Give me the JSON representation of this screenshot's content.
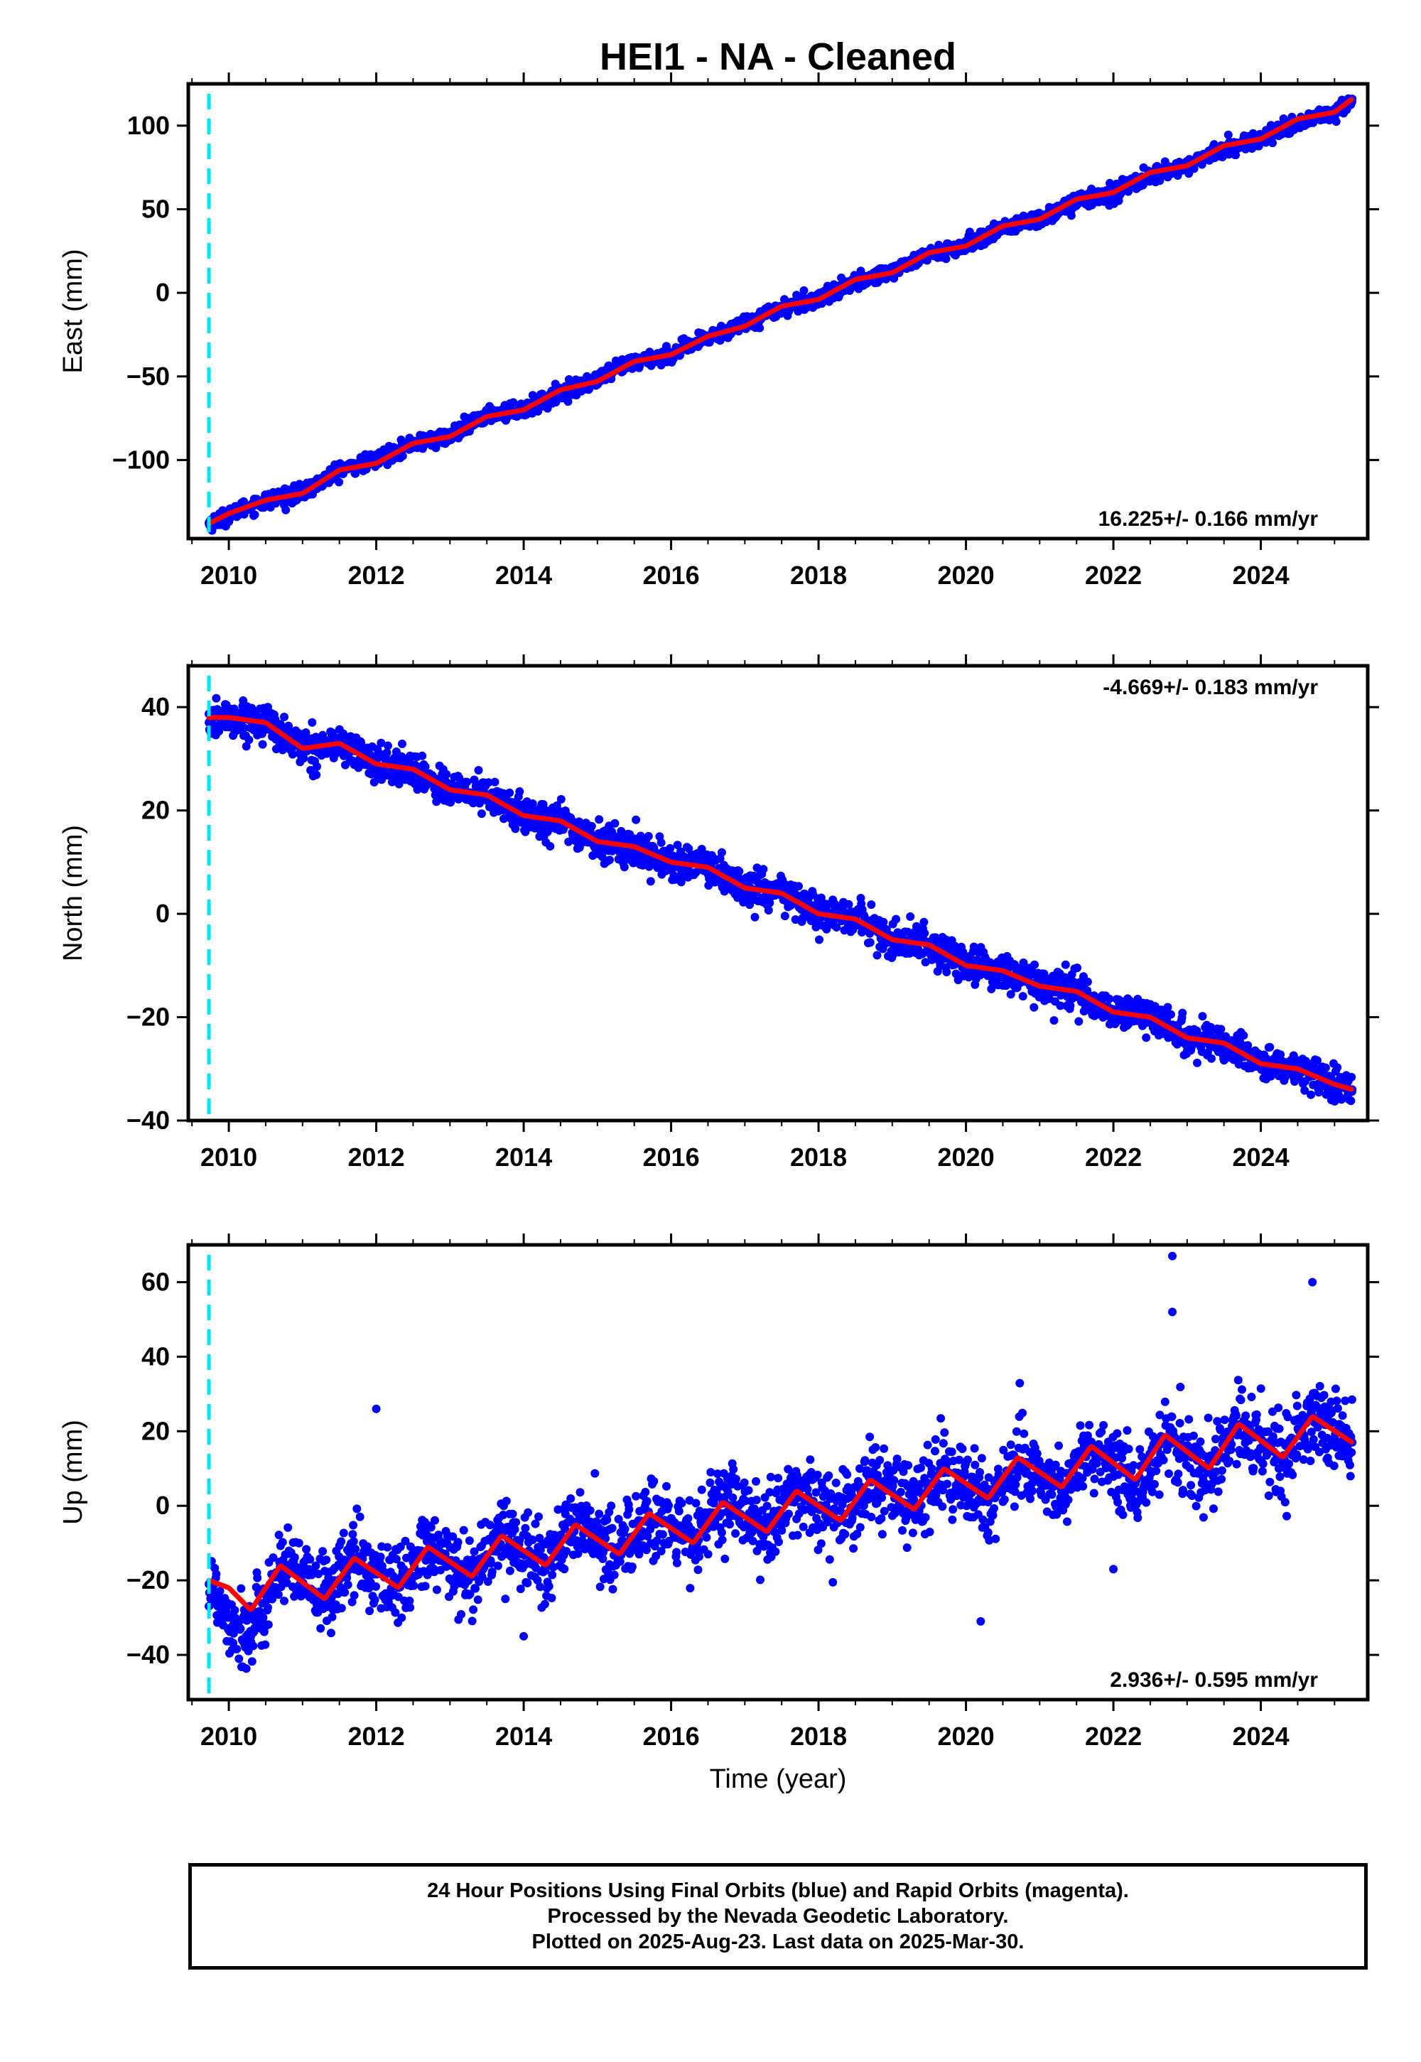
{
  "title": "HEI1  - NA - Cleaned",
  "xlabel": "Time (year)",
  "colors": {
    "data": "#0000ff",
    "model": "#ff0000",
    "event": "#00e5ee",
    "frame": "#000000"
  },
  "chart_data": [
    {
      "type": "scatter",
      "component": "east",
      "ylabel": "East (mm)",
      "xlim": [
        2009.45,
        2025.45
      ],
      "ylim": [
        -147,
        125
      ],
      "xticks": [
        2010,
        2012,
        2014,
        2016,
        2018,
        2020,
        2022,
        2024
      ],
      "yticks": [
        -100,
        -50,
        0,
        50,
        100
      ],
      "rate_text": "16.225+/- 0.166 mm/yr",
      "rate_position": "bottom-right",
      "event_line_x": 2009.73,
      "data_range": [
        2009.73,
        2025.24
      ],
      "series": [
        {
          "name": "",
          "kind": "points",
          "color": "#0000ff",
          "points": [
            [
              2009.73,
              -138
            ],
            [
              2009.9,
              -135
            ],
            [
              2010.2,
              -129
            ],
            [
              2010.5,
              -124
            ],
            [
              2011.0,
              -120
            ],
            [
              2011.5,
              -106
            ],
            [
              2012.0,
              -100
            ],
            [
              2012.5,
              -90
            ],
            [
              2013.0,
              -86
            ],
            [
              2013.5,
              -73
            ],
            [
              2014.0,
              -70
            ],
            [
              2014.5,
              -60
            ],
            [
              2015.0,
              -52
            ],
            [
              2015.5,
              -41
            ],
            [
              2016.0,
              -37
            ],
            [
              2016.5,
              -27
            ],
            [
              2017.0,
              -18
            ],
            [
              2017.5,
              -9
            ],
            [
              2018.0,
              -3
            ],
            [
              2018.5,
              6
            ],
            [
              2019.0,
              13
            ],
            [
              2019.5,
              23
            ],
            [
              2020.0,
              28
            ],
            [
              2020.5,
              39
            ],
            [
              2021.0,
              44
            ],
            [
              2021.5,
              55
            ],
            [
              2022.0,
              60
            ],
            [
              2022.5,
              70
            ],
            [
              2023.0,
              76
            ],
            [
              2023.5,
              86
            ],
            [
              2024.0,
              92
            ],
            [
              2024.5,
              102
            ],
            [
              2025.0,
              108
            ],
            [
              2025.24,
              116
            ]
          ]
        },
        {
          "name": "",
          "kind": "model",
          "color": "#ff0000",
          "points": [
            [
              2009.73,
              -138
            ],
            [
              2010.0,
              -132
            ],
            [
              2010.5,
              -124
            ],
            [
              2011.0,
              -120
            ],
            [
              2011.5,
              -106
            ],
            [
              2012.0,
              -102
            ],
            [
              2012.5,
              -90
            ],
            [
              2013.0,
              -86
            ],
            [
              2013.5,
              -74
            ],
            [
              2014.0,
              -70
            ],
            [
              2014.5,
              -58
            ],
            [
              2015.0,
              -53
            ],
            [
              2015.5,
              -41
            ],
            [
              2016.0,
              -37
            ],
            [
              2016.5,
              -26
            ],
            [
              2017.0,
              -20
            ],
            [
              2017.5,
              -8
            ],
            [
              2018.0,
              -4
            ],
            [
              2018.5,
              8
            ],
            [
              2019.0,
              12
            ],
            [
              2019.5,
              24
            ],
            [
              2020.0,
              28
            ],
            [
              2020.5,
              40
            ],
            [
              2021.0,
              44
            ],
            [
              2021.5,
              56
            ],
            [
              2022.0,
              60
            ],
            [
              2022.5,
              72
            ],
            [
              2023.0,
              76
            ],
            [
              2023.5,
              88
            ],
            [
              2024.0,
              92
            ],
            [
              2024.5,
              104
            ],
            [
              2025.0,
              108
            ],
            [
              2025.24,
              116
            ]
          ]
        }
      ]
    },
    {
      "type": "scatter",
      "component": "north",
      "ylabel": "North (mm)",
      "xlim": [
        2009.45,
        2025.45
      ],
      "ylim": [
        -40,
        48
      ],
      "xticks": [
        2010,
        2012,
        2014,
        2016,
        2018,
        2020,
        2022,
        2024
      ],
      "yticks": [
        -40,
        -20,
        0,
        20,
        40
      ],
      "rate_text": "-4.669+/- 0.183 mm/yr",
      "rate_position": "top-right",
      "event_line_x": 2009.73,
      "data_range": [
        2009.73,
        2025.24
      ],
      "series": [
        {
          "name": "",
          "kind": "points",
          "color": "#0000ff",
          "points": [
            [
              2009.73,
              37
            ],
            [
              2010.0,
              38
            ],
            [
              2010.5,
              37
            ],
            [
              2011.0,
              32
            ],
            [
              2011.5,
              33
            ],
            [
              2012.0,
              29
            ],
            [
              2012.5,
              28
            ],
            [
              2013.0,
              24
            ],
            [
              2013.5,
              23
            ],
            [
              2014.0,
              19
            ],
            [
              2014.5,
              18
            ],
            [
              2015.0,
              14
            ],
            [
              2015.5,
              13
            ],
            [
              2016.0,
              10
            ],
            [
              2016.5,
              9
            ],
            [
              2017.0,
              5
            ],
            [
              2017.5,
              4
            ],
            [
              2018.0,
              0
            ],
            [
              2018.5,
              -1
            ],
            [
              2019.0,
              -5
            ],
            [
              2019.5,
              -6
            ],
            [
              2020.0,
              -10
            ],
            [
              2020.5,
              -11
            ],
            [
              2021.0,
              -14
            ],
            [
              2021.5,
              -15
            ],
            [
              2022.0,
              -19
            ],
            [
              2022.5,
              -20
            ],
            [
              2023.0,
              -24
            ],
            [
              2023.5,
              -25
            ],
            [
              2024.0,
              -29
            ],
            [
              2024.5,
              -30
            ],
            [
              2025.0,
              -33
            ],
            [
              2025.24,
              -34
            ]
          ]
        },
        {
          "name": "",
          "kind": "model",
          "color": "#ff0000",
          "points": [
            [
              2009.73,
              38
            ],
            [
              2010.0,
              38
            ],
            [
              2010.5,
              37
            ],
            [
              2011.0,
              32
            ],
            [
              2011.5,
              33
            ],
            [
              2012.0,
              29
            ],
            [
              2012.5,
              28
            ],
            [
              2013.0,
              24
            ],
            [
              2013.5,
              23
            ],
            [
              2014.0,
              19
            ],
            [
              2014.5,
              18
            ],
            [
              2015.0,
              14
            ],
            [
              2015.5,
              13
            ],
            [
              2016.0,
              10
            ],
            [
              2016.5,
              9
            ],
            [
              2017.0,
              5
            ],
            [
              2017.5,
              4
            ],
            [
              2018.0,
              0
            ],
            [
              2018.5,
              -1
            ],
            [
              2019.0,
              -5
            ],
            [
              2019.5,
              -6
            ],
            [
              2020.0,
              -10
            ],
            [
              2020.5,
              -11
            ],
            [
              2021.0,
              -14
            ],
            [
              2021.5,
              -15
            ],
            [
              2022.0,
              -19
            ],
            [
              2022.5,
              -20
            ],
            [
              2023.0,
              -24
            ],
            [
              2023.5,
              -25
            ],
            [
              2024.0,
              -29
            ],
            [
              2024.5,
              -30
            ],
            [
              2025.0,
              -33
            ],
            [
              2025.24,
              -34
            ]
          ]
        }
      ]
    },
    {
      "type": "scatter",
      "component": "up",
      "ylabel": "Up (mm)",
      "xlim": [
        2009.45,
        2025.45
      ],
      "ylim": [
        -52,
        70
      ],
      "xticks": [
        2010,
        2012,
        2014,
        2016,
        2018,
        2020,
        2022,
        2024
      ],
      "yticks": [
        -40,
        -20,
        0,
        20,
        40,
        60
      ],
      "rate_text": "2.936+/- 0.595 mm/yr",
      "rate_position": "bottom-right",
      "event_line_x": 2009.73,
      "data_range": [
        2009.73,
        2025.24
      ],
      "series": [
        {
          "name": "",
          "kind": "points",
          "color": "#0000ff",
          "points": [
            [
              2009.73,
              -21
            ],
            [
              2010.0,
              -30
            ],
            [
              2010.3,
              -35
            ],
            [
              2010.7,
              -16
            ],
            [
              2011.3,
              -24
            ],
            [
              2011.7,
              -14
            ],
            [
              2012.3,
              -22
            ],
            [
              2012.7,
              -12
            ],
            [
              2013.3,
              -19
            ],
            [
              2013.7,
              -7
            ],
            [
              2014.3,
              -16
            ],
            [
              2014.7,
              -5
            ],
            [
              2015.3,
              -12
            ],
            [
              2015.7,
              -3
            ],
            [
              2016.3,
              -9
            ],
            [
              2016.7,
              1
            ],
            [
              2017.3,
              -7
            ],
            [
              2017.7,
              4
            ],
            [
              2018.3,
              -4
            ],
            [
              2018.7,
              7
            ],
            [
              2019.3,
              -1
            ],
            [
              2019.7,
              10
            ],
            [
              2020.3,
              1
            ],
            [
              2020.7,
              12
            ],
            [
              2021.3,
              4
            ],
            [
              2021.7,
              15
            ],
            [
              2022.3,
              6
            ],
            [
              2022.7,
              18
            ],
            [
              2023.3,
              9
            ],
            [
              2023.7,
              21
            ],
            [
              2024.3,
              12
            ],
            [
              2024.7,
              24
            ],
            [
              2025.24,
              17
            ],
            [
              2012.0,
              26
            ],
            [
              2022.8,
              67
            ],
            [
              2022.8,
              52
            ],
            [
              2024.7,
              60
            ],
            [
              2020.2,
              -31
            ],
            [
              2014.0,
              -35
            ],
            [
              2022.0,
              -17
            ]
          ]
        },
        {
          "name": "",
          "kind": "model",
          "color": "#ff0000",
          "points": [
            [
              2009.73,
              -20
            ],
            [
              2010.0,
              -22
            ],
            [
              2010.3,
              -28
            ],
            [
              2010.7,
              -16
            ],
            [
              2011.3,
              -25
            ],
            [
              2011.7,
              -14
            ],
            [
              2012.3,
              -22
            ],
            [
              2012.7,
              -11
            ],
            [
              2013.3,
              -19
            ],
            [
              2013.7,
              -8
            ],
            [
              2014.3,
              -16
            ],
            [
              2014.7,
              -5
            ],
            [
              2015.3,
              -13
            ],
            [
              2015.7,
              -2
            ],
            [
              2016.3,
              -10
            ],
            [
              2016.7,
              1
            ],
            [
              2017.3,
              -7
            ],
            [
              2017.7,
              4
            ],
            [
              2018.3,
              -4
            ],
            [
              2018.7,
              7
            ],
            [
              2019.3,
              -1
            ],
            [
              2019.7,
              10
            ],
            [
              2020.3,
              2
            ],
            [
              2020.7,
              13
            ],
            [
              2021.3,
              5
            ],
            [
              2021.7,
              16
            ],
            [
              2022.3,
              7
            ],
            [
              2022.7,
              19
            ],
            [
              2023.3,
              10
            ],
            [
              2023.7,
              22
            ],
            [
              2024.3,
              13
            ],
            [
              2024.7,
              24
            ],
            [
              2025.24,
              17
            ]
          ]
        }
      ]
    }
  ],
  "footer": {
    "line1": "24 Hour Positions Using Final Orbits (blue) and Rapid Orbits (magenta).",
    "line2": "Processed by the Nevada Geodetic Laboratory.",
    "line3": "Plotted on 2025-Aug-23. Last data on 2025-Mar-30."
  }
}
